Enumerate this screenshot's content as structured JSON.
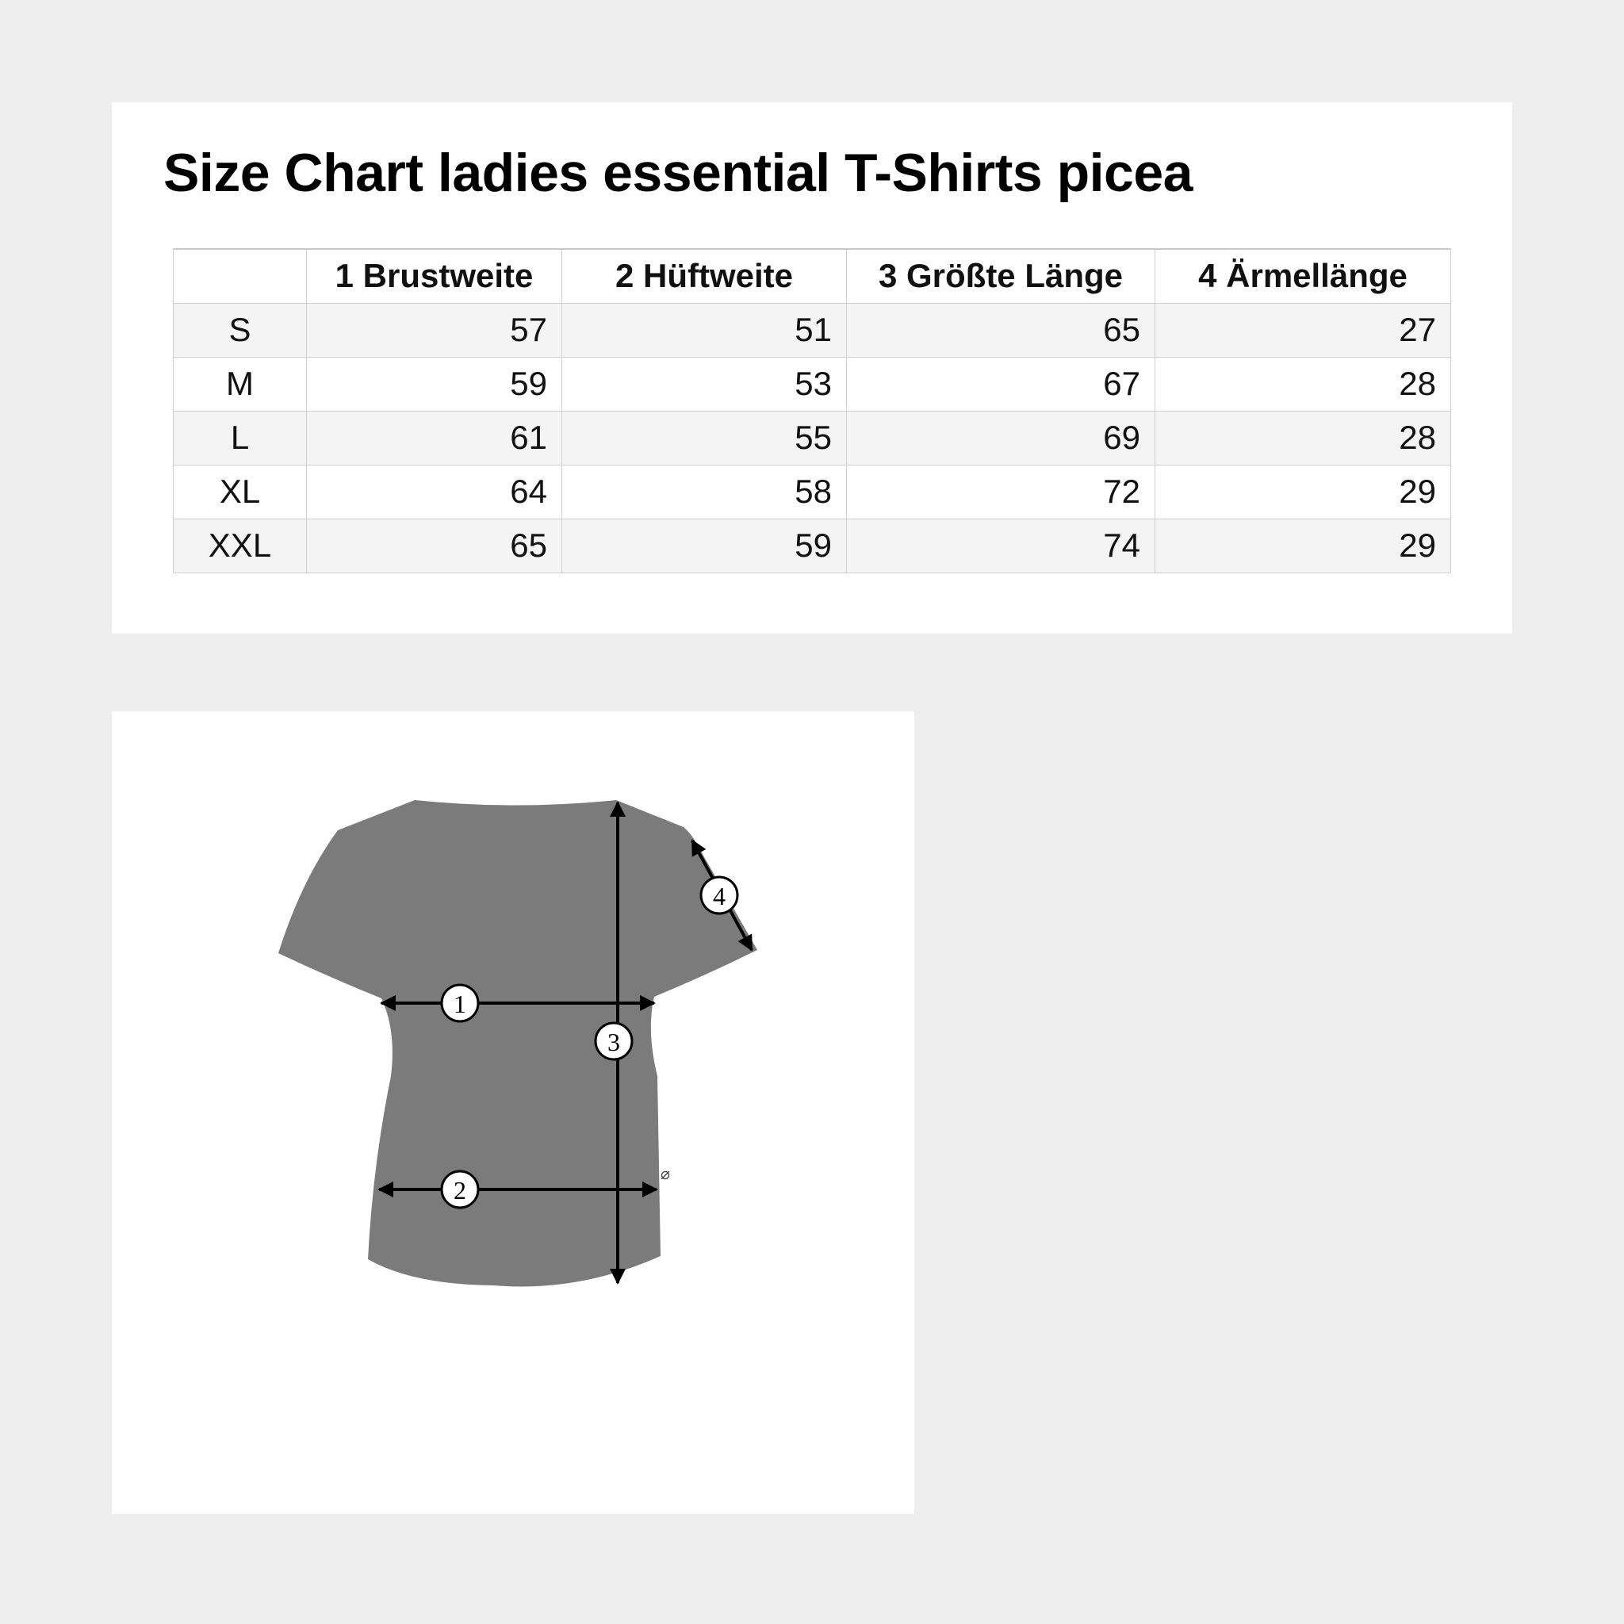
{
  "title": "Size Chart ladies essential T-Shirts picea",
  "table": {
    "headers": [
      "",
      "1 Brustweite",
      "2 Hüftweite",
      "3 Größte Länge",
      "4 Ärmellänge"
    ],
    "rows": [
      {
        "size": "S",
        "values": [
          "57",
          "51",
          "65",
          "27"
        ]
      },
      {
        "size": "M",
        "values": [
          "59",
          "53",
          "67",
          "28"
        ]
      },
      {
        "size": "L",
        "values": [
          "61",
          "55",
          "69",
          "28"
        ]
      },
      {
        "size": "XL",
        "values": [
          "64",
          "58",
          "72",
          "29"
        ]
      },
      {
        "size": "XXL",
        "values": [
          "65",
          "59",
          "74",
          "29"
        ]
      }
    ]
  },
  "diagram": {
    "shirt_color": "#7b7b7b",
    "markers": [
      "1",
      "2",
      "3",
      "4"
    ],
    "logo_glyph": "⌀"
  }
}
